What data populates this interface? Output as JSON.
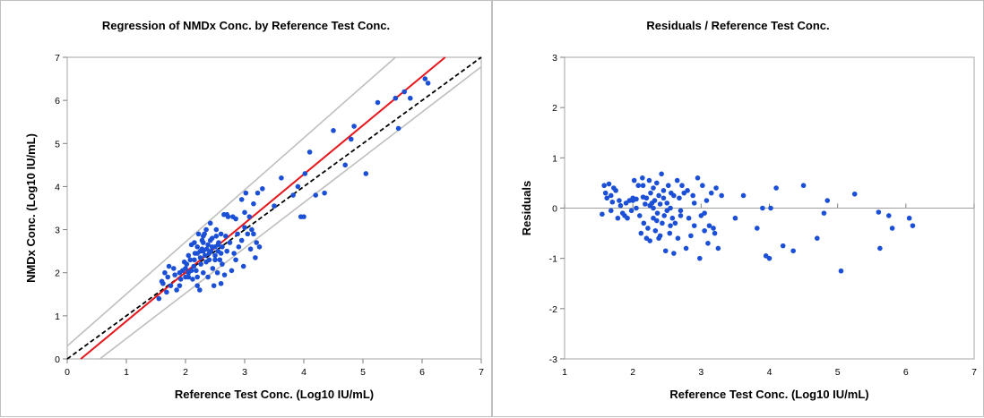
{
  "chart_data": [
    {
      "type": "scatter",
      "title": "Regression of NMDx Conc. by Reference Test Conc.",
      "xlabel": "Reference  Test Conc. (Log10 IU/mL)",
      "ylabel": "NMDx Conc. (Log10 IU/mL)",
      "xlim": [
        0,
        7
      ],
      "ylim": [
        0,
        7
      ],
      "xticks": [
        "0",
        "1",
        "2",
        "3",
        "4",
        "5",
        "6",
        "7"
      ],
      "yticks": [
        "0",
        "1",
        "2",
        "3",
        "4",
        "5",
        "6",
        "7"
      ],
      "grid": false,
      "colors": {
        "points": "#1a4fd6",
        "regression": "#e8151b",
        "identity": "#000000",
        "bounds": "#bfbfbf"
      },
      "lines": [
        {
          "kind": "identity",
          "style": "dashed",
          "from": [
            0,
            0
          ],
          "to": [
            7,
            7
          ]
        },
        {
          "kind": "regression",
          "style": "solid",
          "from": [
            0.23,
            0
          ],
          "to": [
            6.39,
            7
          ]
        },
        {
          "kind": "upper-bound",
          "style": "solid",
          "from": [
            0,
            0.3
          ],
          "to": [
            5.55,
            7
          ]
        },
        {
          "kind": "lower-bound",
          "style": "solid",
          "from": [
            0.55,
            0
          ],
          "to": [
            7,
            6.78
          ]
        }
      ],
      "points": [
        [
          1.55,
          1.4
        ],
        [
          1.6,
          1.8
        ],
        [
          1.62,
          1.75
        ],
        [
          1.65,
          2.0
        ],
        [
          1.7,
          1.9
        ],
        [
          1.72,
          2.15
        ],
        [
          1.75,
          1.7
        ],
        [
          1.8,
          2.1
        ],
        [
          1.82,
          1.95
        ],
        [
          1.85,
          1.6
        ],
        [
          1.9,
          2.0
        ],
        [
          1.92,
          1.85
        ],
        [
          1.95,
          2.05
        ],
        [
          2.0,
          1.9
        ],
        [
          2.0,
          2.1
        ],
        [
          2.02,
          2.2
        ],
        [
          2.05,
          2.0
        ],
        [
          2.08,
          2.3
        ],
        [
          2.1,
          2.65
        ],
        [
          2.12,
          1.85
        ],
        [
          2.14,
          2.15
        ],
        [
          2.16,
          2.45
        ],
        [
          2.18,
          2.05
        ],
        [
          2.2,
          2.6
        ],
        [
          2.2,
          1.7
        ],
        [
          2.22,
          2.9
        ],
        [
          2.24,
          1.6
        ],
        [
          2.25,
          2.35
        ],
        [
          2.26,
          2.2
        ],
        [
          2.28,
          2.75
        ],
        [
          2.3,
          2.5
        ],
        [
          2.3,
          2.0
        ],
        [
          2.32,
          2.9
        ],
        [
          2.33,
          2.4
        ],
        [
          2.35,
          3.0
        ],
        [
          2.36,
          2.55
        ],
        [
          2.38,
          1.9
        ],
        [
          2.38,
          2.65
        ],
        [
          2.4,
          2.3
        ],
        [
          2.42,
          3.15
        ],
        [
          2.43,
          2.5
        ],
        [
          2.45,
          2.8
        ],
        [
          2.46,
          2.1
        ],
        [
          2.48,
          1.7
        ],
        [
          2.5,
          2.6
        ],
        [
          2.5,
          2.4
        ],
        [
          2.52,
          3.0
        ],
        [
          2.54,
          2.0
        ],
        [
          2.55,
          2.5
        ],
        [
          2.56,
          2.7
        ],
        [
          2.58,
          2.3
        ],
        [
          2.6,
          2.9
        ],
        [
          2.6,
          1.75
        ],
        [
          2.62,
          2.2
        ],
        [
          2.65,
          3.35
        ],
        [
          2.68,
          2.85
        ],
        [
          2.7,
          2.5
        ],
        [
          2.72,
          3.3
        ],
        [
          2.75,
          2.7
        ],
        [
          2.78,
          2.05
        ],
        [
          2.8,
          3.3
        ],
        [
          2.82,
          2.45
        ],
        [
          2.85,
          2.3
        ],
        [
          2.88,
          2.9
        ],
        [
          2.9,
          2.6
        ],
        [
          2.95,
          3.7
        ],
        [
          2.98,
          2.15
        ],
        [
          3.0,
          3.05
        ],
        [
          3.02,
          3.85
        ],
        [
          3.05,
          2.9
        ],
        [
          3.08,
          3.3
        ],
        [
          3.1,
          2.55
        ],
        [
          3.12,
          3.0
        ],
        [
          3.15,
          3.6
        ],
        [
          3.2,
          2.7
        ],
        [
          3.22,
          3.85
        ],
        [
          3.25,
          2.6
        ],
        [
          3.3,
          3.95
        ],
        [
          3.5,
          3.55
        ],
        [
          3.62,
          4.2
        ],
        [
          3.82,
          3.8
        ],
        [
          3.9,
          4.0
        ],
        [
          3.95,
          3.3
        ],
        [
          4.0,
          3.3
        ],
        [
          4.02,
          4.3
        ],
        [
          4.1,
          4.8
        ],
        [
          4.2,
          3.8
        ],
        [
          4.35,
          3.85
        ],
        [
          4.5,
          5.3
        ],
        [
          4.7,
          4.5
        ],
        [
          4.8,
          5.1
        ],
        [
          4.85,
          5.4
        ],
        [
          5.05,
          4.3
        ],
        [
          5.25,
          5.95
        ],
        [
          5.55,
          6.05
        ],
        [
          5.6,
          5.35
        ],
        [
          5.7,
          6.2
        ],
        [
          5.8,
          6.05
        ],
        [
          6.05,
          6.5
        ],
        [
          6.1,
          6.4
        ],
        [
          1.68,
          1.55
        ],
        [
          2.05,
          2.4
        ],
        [
          2.28,
          2.55
        ],
        [
          2.4,
          2.45
        ],
        [
          2.5,
          2.3
        ],
        [
          2.55,
          2.65
        ],
        [
          2.3,
          2.7
        ],
        [
          2.15,
          2.3
        ],
        [
          2.2,
          2.45
        ],
        [
          1.98,
          2.25
        ],
        [
          2.62,
          2.6
        ],
        [
          2.45,
          2.6
        ],
        [
          2.35,
          2.25
        ],
        [
          2.25,
          2.5
        ],
        [
          2.1,
          2.05
        ],
        [
          2.6,
          2.45
        ],
        [
          2.7,
          3.35
        ],
        [
          2.85,
          3.25
        ],
        [
          3.0,
          3.4
        ],
        [
          3.18,
          2.35
        ],
        [
          2.15,
          2.7
        ],
        [
          2.3,
          2.85
        ],
        [
          2.42,
          2.75
        ],
        [
          2.52,
          2.85
        ],
        [
          2.2,
          1.9
        ],
        [
          2.05,
          1.9
        ],
        [
          1.9,
          1.7
        ],
        [
          2.66,
          1.95
        ],
        [
          2.95,
          2.75
        ],
        [
          3.15,
          2.9
        ]
      ]
    },
    {
      "type": "scatter",
      "title": "Residuals / Reference Test Conc.",
      "xlabel": "Reference  Test Conc. (Log10 IU/mL)",
      "ylabel": "Residuals",
      "xlim": [
        1,
        7
      ],
      "ylim": [
        -3,
        3
      ],
      "xticks": [
        "1",
        "2",
        "3",
        "4",
        "5",
        "6",
        "7"
      ],
      "yticks": [
        "-3",
        "-2",
        "-1",
        "0",
        "1",
        "2",
        "3"
      ],
      "grid": false,
      "colors": {
        "points": "#1a4fd6",
        "zero-line": "#9e9e9e"
      },
      "points": [
        [
          1.55,
          -0.12
        ],
        [
          1.58,
          0.45
        ],
        [
          1.6,
          0.3
        ],
        [
          1.62,
          0.2
        ],
        [
          1.65,
          0.48
        ],
        [
          1.68,
          0.25
        ],
        [
          1.7,
          0.12
        ],
        [
          1.72,
          0.4
        ],
        [
          1.75,
          0.35
        ],
        [
          1.78,
          -0.2
        ],
        [
          1.8,
          0.15
        ],
        [
          1.82,
          0.05
        ],
        [
          1.85,
          -0.1
        ],
        [
          1.88,
          -0.15
        ],
        [
          1.9,
          0.1
        ],
        [
          1.92,
          -0.2
        ],
        [
          1.95,
          0.15
        ],
        [
          1.98,
          -0.05
        ],
        [
          2.0,
          0.2
        ],
        [
          2.02,
          0.55
        ],
        [
          2.05,
          0.0
        ],
        [
          2.05,
          0.18
        ],
        [
          2.08,
          0.45
        ],
        [
          2.1,
          -0.15
        ],
        [
          2.12,
          -0.5
        ],
        [
          2.14,
          0.6
        ],
        [
          2.15,
          0.22
        ],
        [
          2.16,
          -0.3
        ],
        [
          2.18,
          0.08
        ],
        [
          2.2,
          -0.6
        ],
        [
          2.2,
          0.2
        ],
        [
          2.22,
          -0.4
        ],
        [
          2.24,
          0.55
        ],
        [
          2.25,
          -0.65
        ],
        [
          2.26,
          0.3
        ],
        [
          2.28,
          0.1
        ],
        [
          2.3,
          -0.2
        ],
        [
          2.3,
          0.4
        ],
        [
          2.32,
          0.15
        ],
        [
          2.33,
          -0.45
        ],
        [
          2.35,
          0.5
        ],
        [
          2.36,
          -0.1
        ],
        [
          2.38,
          0.25
        ],
        [
          2.38,
          -0.6
        ],
        [
          2.4,
          0.08
        ],
        [
          2.42,
          0.68
        ],
        [
          2.43,
          -0.3
        ],
        [
          2.45,
          0.2
        ],
        [
          2.46,
          -0.15
        ],
        [
          2.48,
          -0.85
        ],
        [
          2.5,
          0.1
        ],
        [
          2.5,
          -0.05
        ],
        [
          2.52,
          0.45
        ],
        [
          2.54,
          -0.5
        ],
        [
          2.55,
          0.0
        ],
        [
          2.56,
          0.3
        ],
        [
          2.58,
          -0.2
        ],
        [
          2.6,
          0.25
        ],
        [
          2.6,
          -0.9
        ],
        [
          2.62,
          -0.3
        ],
        [
          2.65,
          0.55
        ],
        [
          2.66,
          -0.6
        ],
        [
          2.68,
          0.2
        ],
        [
          2.7,
          -0.15
        ],
        [
          2.72,
          0.45
        ],
        [
          2.75,
          0.3
        ],
        [
          2.78,
          -0.8
        ],
        [
          2.8,
          0.35
        ],
        [
          2.82,
          -0.2
        ],
        [
          2.85,
          -0.55
        ],
        [
          2.88,
          0.25
        ],
        [
          2.9,
          -0.35
        ],
        [
          2.95,
          0.6
        ],
        [
          2.98,
          -1.0
        ],
        [
          3.0,
          -0.15
        ],
        [
          3.02,
          0.45
        ],
        [
          3.05,
          -0.1
        ],
        [
          3.08,
          0.15
        ],
        [
          3.1,
          -0.7
        ],
        [
          3.12,
          -0.35
        ],
        [
          3.15,
          0.3
        ],
        [
          3.2,
          -0.5
        ],
        [
          3.22,
          0.4
        ],
        [
          3.25,
          -0.8
        ],
        [
          3.3,
          0.25
        ],
        [
          3.5,
          -0.2
        ],
        [
          3.62,
          0.25
        ],
        [
          3.82,
          -0.4
        ],
        [
          3.9,
          0.0
        ],
        [
          3.95,
          -0.95
        ],
        [
          4.0,
          -1.0
        ],
        [
          4.02,
          0.0
        ],
        [
          4.1,
          0.4
        ],
        [
          4.2,
          -0.75
        ],
        [
          4.35,
          -0.85
        ],
        [
          4.5,
          0.45
        ],
        [
          4.7,
          -0.6
        ],
        [
          4.8,
          -0.1
        ],
        [
          4.85,
          0.15
        ],
        [
          5.05,
          -1.25
        ],
        [
          5.25,
          0.28
        ],
        [
          5.6,
          -0.08
        ],
        [
          5.62,
          -0.8
        ],
        [
          5.75,
          -0.15
        ],
        [
          5.8,
          -0.4
        ],
        [
          6.05,
          -0.2
        ],
        [
          6.1,
          -0.35
        ],
        [
          1.68,
          -0.05
        ],
        [
          2.0,
          0.15
        ],
        [
          2.4,
          -0.55
        ],
        [
          2.7,
          -0.05
        ],
        [
          3.18,
          -0.4
        ],
        [
          2.25,
          0.05
        ],
        [
          2.55,
          -0.35
        ],
        [
          2.15,
          0.45
        ],
        [
          2.3,
          0.0
        ],
        [
          2.45,
          0.35
        ],
        [
          2.9,
          0.1
        ],
        [
          3.05,
          -0.45
        ],
        [
          2.35,
          -0.25
        ]
      ]
    }
  ]
}
